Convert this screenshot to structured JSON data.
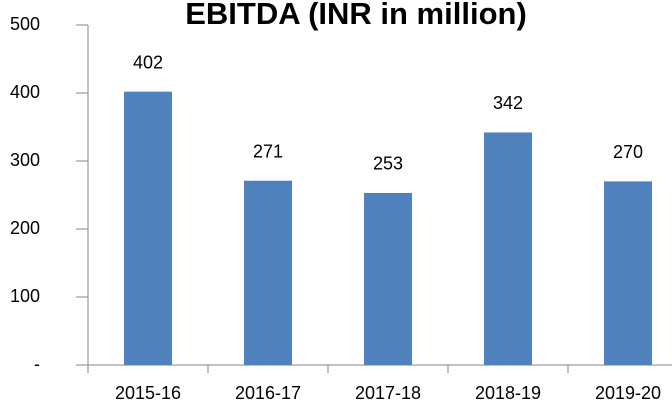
{
  "chart_data": {
    "type": "bar",
    "title": "EBITDA (INR in million)",
    "categories": [
      "2015-16",
      "2016-17",
      "2017-18",
      "2018-19",
      "2019-20"
    ],
    "values": [
      402,
      271,
      253,
      342,
      270
    ],
    "color": "#4f81bd",
    "ylim": [
      0,
      500
    ],
    "yticks": [
      {
        "value": 0,
        "label": "-"
      },
      100,
      200,
      300,
      400,
      500
    ]
  }
}
